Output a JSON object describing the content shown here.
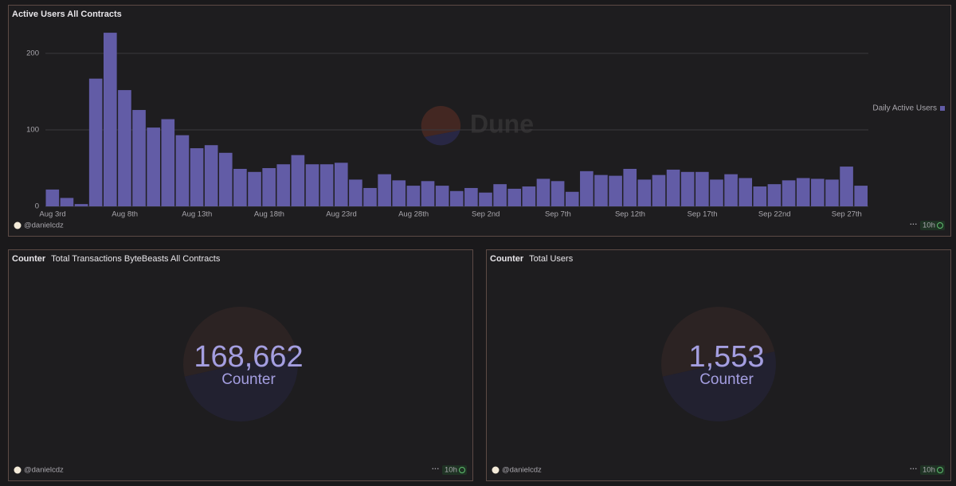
{
  "chart_data": {
    "type": "bar",
    "title": "Active Users All Contracts",
    "categories": [
      "Aug 3rd",
      null,
      null,
      null,
      null,
      "Aug 8th",
      null,
      null,
      null,
      null,
      "Aug 13th",
      null,
      null,
      null,
      null,
      "Aug 18th",
      null,
      null,
      null,
      null,
      "Aug 23rd",
      null,
      null,
      null,
      null,
      "Aug 28th",
      null,
      null,
      null,
      null,
      "Sep 2nd",
      null,
      null,
      null,
      null,
      "Sep 7th",
      null,
      null,
      null,
      null,
      "Sep 12th",
      null,
      null,
      null,
      null,
      "Sep 17th",
      null,
      null,
      null,
      null,
      "Sep 22nd",
      null,
      null,
      null,
      null,
      "Sep 27th",
      null
    ],
    "series": [
      {
        "name": "Daily Active Users",
        "color": "#625ca6",
        "values": [
          22,
          11,
          3,
          167,
          227,
          152,
          126,
          103,
          114,
          93,
          76,
          80,
          70,
          49,
          45,
          50,
          55,
          67,
          55,
          55,
          57,
          35,
          24,
          42,
          34,
          27,
          33,
          27,
          20,
          24,
          18,
          29,
          23,
          26,
          36,
          33,
          19,
          46,
          41,
          40,
          49,
          35,
          41,
          48,
          45,
          45,
          35,
          42,
          37,
          26,
          29,
          34,
          37,
          36,
          35,
          52,
          27
        ]
      }
    ],
    "ylim": [
      0,
      225
    ],
    "yticks": [
      0,
      100,
      200
    ],
    "grid": true,
    "legend": "right"
  },
  "chart_footer": {
    "user": "@danielcdz",
    "age": "10h"
  },
  "watermark": "Dune",
  "counters": [
    {
      "kind": "Counter",
      "title": "Total Transactions ByteBeasts All Contracts",
      "value": 168662,
      "value_label": "168,662",
      "caption": "Counter",
      "user": "@danielcdz",
      "age": "10h"
    },
    {
      "kind": "Counter",
      "title": "Total Users",
      "value": 1553,
      "value_label": "1,553",
      "caption": "Counter",
      "user": "@danielcdz",
      "age": "10h"
    }
  ]
}
